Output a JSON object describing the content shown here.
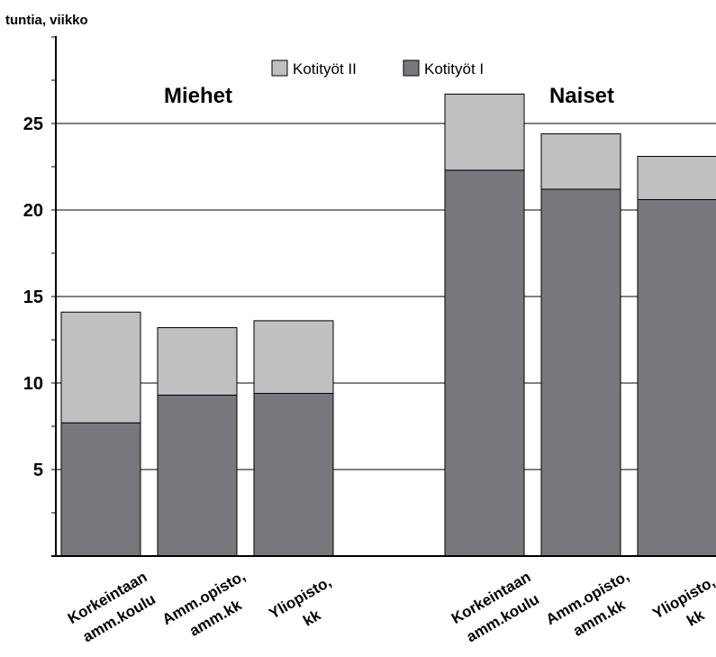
{
  "chart_data": {
    "type": "bar",
    "stacked": true,
    "ylabel": "tuntia, viikko",
    "ylim": [
      0,
      30
    ],
    "yticks": [
      5,
      10,
      15,
      20,
      25
    ],
    "grid": true,
    "legend_placement": "top-center",
    "groups": [
      {
        "title": "Miehet",
        "categories": [
          [
            "Korkeintaan",
            "amm.koulu"
          ],
          [
            "Amm.opisto,",
            "amm.kk"
          ],
          [
            "Yliopisto,",
            "kk"
          ]
        ],
        "series": [
          {
            "name": "Kotityöt I",
            "values": [
              7.7,
              9.3,
              9.4
            ]
          },
          {
            "name": "Kotityöt II",
            "values": [
              6.4,
              3.9,
              4.2
            ]
          }
        ]
      },
      {
        "title": "Naiset",
        "categories": [
          [
            "Korkeintaan",
            "amm.koulu"
          ],
          [
            "Amm.opisto,",
            "amm.kk"
          ],
          [
            "Yliopisto,",
            "kk"
          ]
        ],
        "series": [
          {
            "name": "Kotityöt I",
            "values": [
              22.3,
              21.2,
              20.6
            ]
          },
          {
            "name": "Kotityöt II",
            "values": [
              4.4,
              3.2,
              2.5
            ]
          }
        ]
      }
    ],
    "legend": [
      {
        "name": "Kotityöt II",
        "color": "#c0c0c0"
      },
      {
        "name": "Kotityöt I",
        "color": "#78787c"
      }
    ],
    "colors": {
      "Kotityöt I": "#78787c",
      "Kotityöt II": "#c0c0c0"
    }
  }
}
